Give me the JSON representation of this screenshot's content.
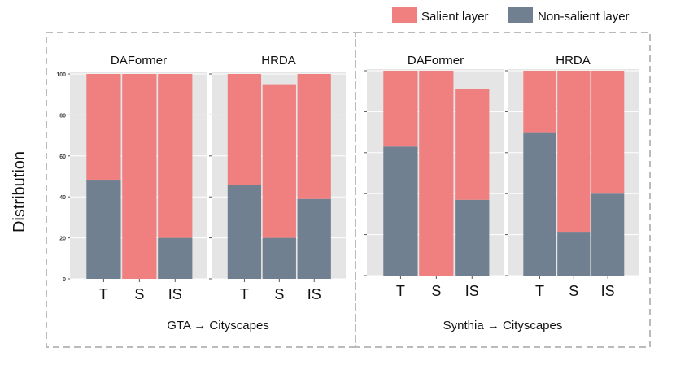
{
  "chart_data": {
    "type": "bar",
    "stacked": true,
    "ylabel": "Distribution",
    "legend": {
      "placement": "top-right",
      "entries": [
        {
          "name": "Salient layer",
          "color": "#F08080"
        },
        {
          "name": "Non-salient layer",
          "color": "#708090"
        }
      ]
    },
    "groups": [
      {
        "title": "GTA → Cityscapes",
        "ylim": [
          0,
          100
        ],
        "yticks": [
          "0",
          "20",
          "40",
          "60",
          "80",
          "100"
        ],
        "show_tick_labels": true,
        "panels": [
          {
            "title": "DAFormer",
            "categories": [
              "T",
              "S",
              "IS"
            ],
            "series": [
              {
                "name": "Non-salient layer",
                "values": [
                  48,
                  0,
                  20
                ]
              },
              {
                "name": "Salient layer",
                "values": [
                  52,
                  100,
                  80
                ]
              }
            ]
          },
          {
            "title": "HRDA",
            "categories": [
              "T",
              "S",
              "IS"
            ],
            "series": [
              {
                "name": "Non-salient layer",
                "values": [
                  46,
                  20,
                  39
                ]
              },
              {
                "name": "Salient layer",
                "values": [
                  54,
                  75,
                  61
                ]
              }
            ]
          }
        ]
      },
      {
        "title": "Synthia → Cityscapes",
        "ylim": [
          0,
          100
        ],
        "yticks": [
          "0",
          "20",
          "40",
          "60",
          "80",
          "100"
        ],
        "show_tick_labels": false,
        "panels": [
          {
            "title": "DAFormer",
            "categories": [
              "T",
              "S",
              "IS"
            ],
            "series": [
              {
                "name": "Non-salient layer",
                "values": [
                  63,
                  0,
                  37
                ]
              },
              {
                "name": "Salient layer",
                "values": [
                  37,
                  100,
                  54
                ]
              }
            ]
          },
          {
            "title": "HRDA",
            "categories": [
              "T",
              "S",
              "IS"
            ],
            "series": [
              {
                "name": "Non-salient layer",
                "values": [
                  70,
                  21,
                  40
                ]
              },
              {
                "name": "Salient layer",
                "values": [
                  30,
                  79,
                  60
                ]
              }
            ]
          }
        ]
      }
    ]
  },
  "colors": {
    "salient": "#F08080",
    "nonsalient": "#708090",
    "panel_bg": "#E5E5E5",
    "frame": "#BBBBBB"
  }
}
